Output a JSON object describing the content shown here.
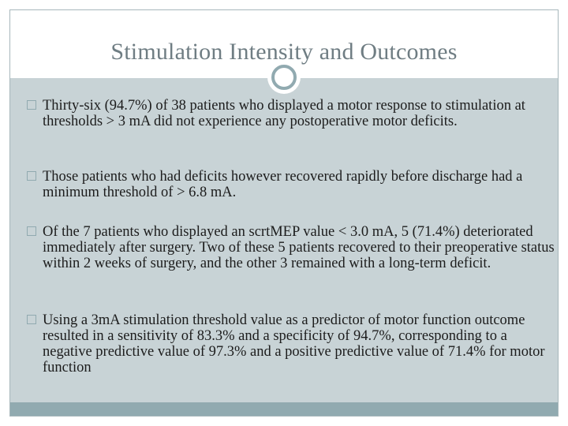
{
  "slide": {
    "title": "Stimulation Intensity and Outcomes",
    "bullets": [
      "Thirty-six (94.7%) of 38 patients who displayed a motor response to stimulation at thresholds > 3 mA did not experience any postoperative motor deficits.",
      "Those patients who had deficits however recovered rapidly before discharge had a minimum threshold of > 6.8 mA.",
      "Of the 7 patients who displayed an scrtMEP value < 3.0 mA, 5 (71.4%) deteriorated immediately after surgery. Two of these 5 patients recovered to their preoperative status within 2 weeks of surgery, and the other 3 remained with a long-term deficit.",
      "Using a 3mA stimulation threshold value as a predictor of motor function outcome resulted in a sensitivity of 83.3% and a specificity of 94.7%, corresponding to a negative predictive value of 97.3% and a positive predictive value of 71.4% for motor function"
    ]
  },
  "colors": {
    "body_background": "#c8d3d6",
    "accent": "#91aab0",
    "title_text": "#6f7d83",
    "body_text": "#1c1c1c"
  },
  "icons": {
    "bullet": "square-bullet-icon",
    "title_ornament": "ring-ornament-icon"
  }
}
